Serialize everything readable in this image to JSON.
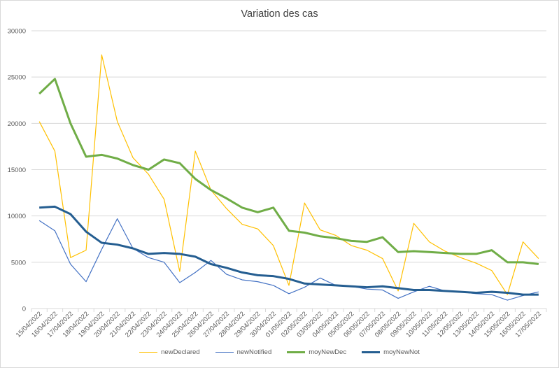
{
  "chart_data": {
    "type": "line",
    "title": "Variation des cas",
    "xlabel": "",
    "ylabel": "",
    "ylim": [
      0,
      30000
    ],
    "yticks": [
      "0",
      "5000",
      "10000",
      "15000",
      "20000",
      "25000",
      "30000"
    ],
    "grid": true,
    "legend_position": "bottom",
    "categories": [
      "15/04/2022",
      "16/04/2022",
      "17/04/2022",
      "18/04/2022",
      "19/04/2022",
      "20/04/2022",
      "21/04/2022",
      "22/04/2022",
      "23/04/2022",
      "24/04/2022",
      "25/04/2022",
      "26/04/2022",
      "27/04/2022",
      "28/04/2022",
      "29/04/2022",
      "30/04/2022",
      "01/05/2022",
      "02/05/2022",
      "03/05/2022",
      "04/05/2022",
      "05/05/2022",
      "06/05/2022",
      "07/05/2022",
      "08/05/2022",
      "09/05/2022",
      "10/05/2022",
      "11/05/2022",
      "12/05/2022",
      "13/05/2022",
      "14/05/2022",
      "15/05/2022",
      "16/05/2022",
      "17/05/2022"
    ],
    "series": [
      {
        "name": "newDeclared",
        "color": "#FFC000",
        "width": 1.2,
        "values": [
          20200,
          17000,
          5500,
          6300,
          27400,
          20200,
          16300,
          14500,
          11800,
          4000,
          17000,
          12800,
          10800,
          9100,
          8600,
          6800,
          2500,
          11400,
          8500,
          7900,
          6800,
          6300,
          5400,
          1900,
          9200,
          7200,
          6200,
          5500,
          4900,
          4100,
          1500,
          7200,
          5400
        ]
      },
      {
        "name": "newNotified",
        "color": "#4472C4",
        "width": 1.2,
        "values": [
          9500,
          8400,
          4800,
          2900,
          6400,
          9700,
          6500,
          5500,
          5000,
          2800,
          3900,
          5200,
          3700,
          3100,
          2900,
          2500,
          1600,
          2300,
          3300,
          2500,
          2400,
          2100,
          2000,
          1100,
          1800,
          2400,
          1900,
          1800,
          1600,
          1500,
          900,
          1400,
          1800
        ]
      },
      {
        "name": "moyNewDec",
        "color": "#70AD47",
        "width": 3,
        "values": [
          23200,
          24800,
          20000,
          16400,
          16600,
          16200,
          15500,
          15000,
          16100,
          15700,
          14000,
          12800,
          11900,
          10900,
          10400,
          10900,
          8400,
          8200,
          7800,
          7600,
          7300,
          7200,
          7700,
          6100,
          6200,
          6100,
          6000,
          5900,
          5900,
          6300,
          5000,
          5000,
          4800
        ]
      },
      {
        "name": "moyNewNot",
        "color": "#255E91",
        "width": 3,
        "values": [
          10900,
          11000,
          10200,
          8300,
          7100,
          6900,
          6500,
          5900,
          6000,
          5900,
          5600,
          4800,
          4400,
          3900,
          3600,
          3500,
          3200,
          2700,
          2600,
          2500,
          2400,
          2300,
          2400,
          2200,
          2000,
          2000,
          1900,
          1800,
          1700,
          1800,
          1700,
          1500,
          1500
        ]
      }
    ]
  }
}
